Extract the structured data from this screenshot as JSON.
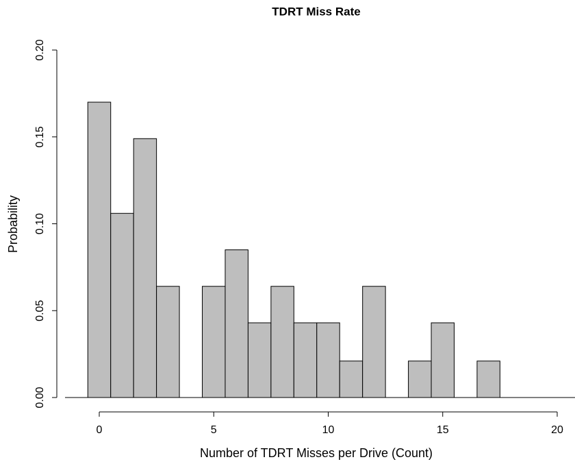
{
  "chart_data": {
    "type": "histogram",
    "title": "TDRT Miss Rate",
    "x_label": "Number of TDRT Misses per Drive (Count)",
    "y_label": "Probability",
    "bins": [
      -0.5,
      0.5,
      1.5,
      2.5,
      3.5,
      4.5,
      5.5,
      6.5,
      7.5,
      8.5,
      9.5,
      10.5,
      11.5,
      12.5,
      13.5,
      14.5,
      15.5,
      16.5,
      17.5,
      18.5,
      19.5,
      20.5
    ],
    "values": [
      0.17,
      0.106,
      0.149,
      0.064,
      0,
      0.064,
      0.085,
      0.043,
      0.064,
      0.043,
      0.043,
      0.021,
      0.064,
      0,
      0.021,
      0.043,
      0,
      0.021,
      0,
      0,
      0
    ],
    "color": "#bebebe",
    "xlim": [
      0,
      20
    ],
    "xticks": [
      0,
      5,
      10,
      15,
      20
    ],
    "ylim": [
      0,
      0.2
    ],
    "yticks": [
      {
        "value": 0,
        "label": "0.00"
      },
      {
        "value": 0.05,
        "label": "0.05"
      },
      {
        "value": 0.1,
        "label": "0.10"
      },
      {
        "value": 0.15,
        "label": "0.15"
      },
      {
        "value": 0.2,
        "label": "0.20"
      }
    ]
  }
}
